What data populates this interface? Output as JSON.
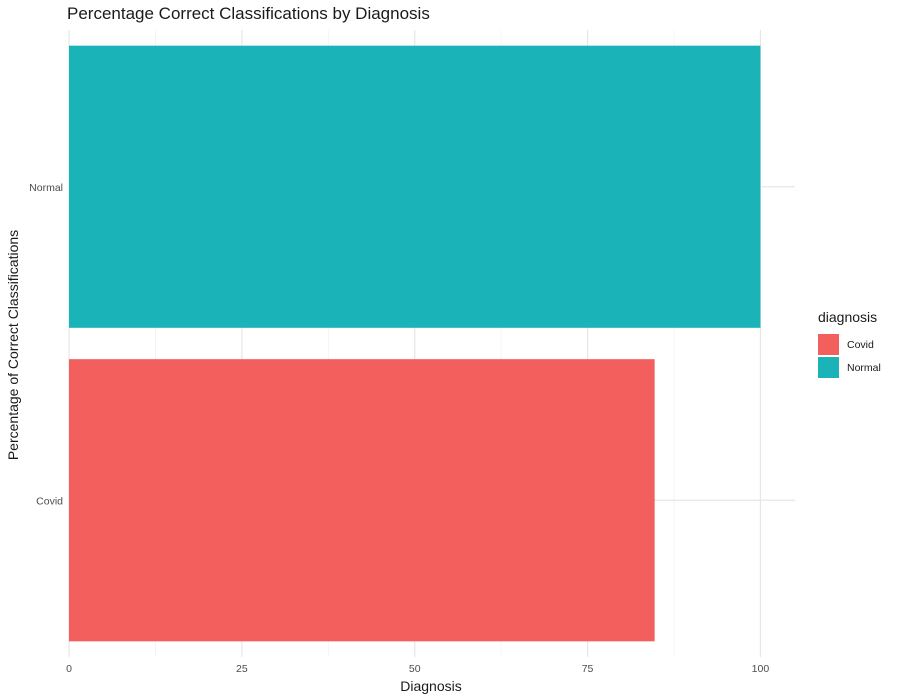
{
  "chart_data": {
    "type": "bar",
    "orientation": "horizontal",
    "title": "Percentage Correct Classifications by Diagnosis",
    "xlabel": "Diagnosis",
    "ylabel": "Percentage of Correct Classifications",
    "categories": [
      "Covid",
      "Normal"
    ],
    "values": [
      84.7,
      100
    ],
    "colors": [
      "#F25F5C",
      "#1AB4B8"
    ],
    "xlim": [
      0,
      105
    ],
    "xticks": [
      "0",
      "25",
      "50",
      "75",
      "100"
    ],
    "grid": true,
    "legend": {
      "title": "diagnosis",
      "position": "right",
      "entries": [
        {
          "label": "Covid",
          "color": "#F25F5C"
        },
        {
          "label": "Normal",
          "color": "#1AB4B8"
        }
      ]
    }
  }
}
